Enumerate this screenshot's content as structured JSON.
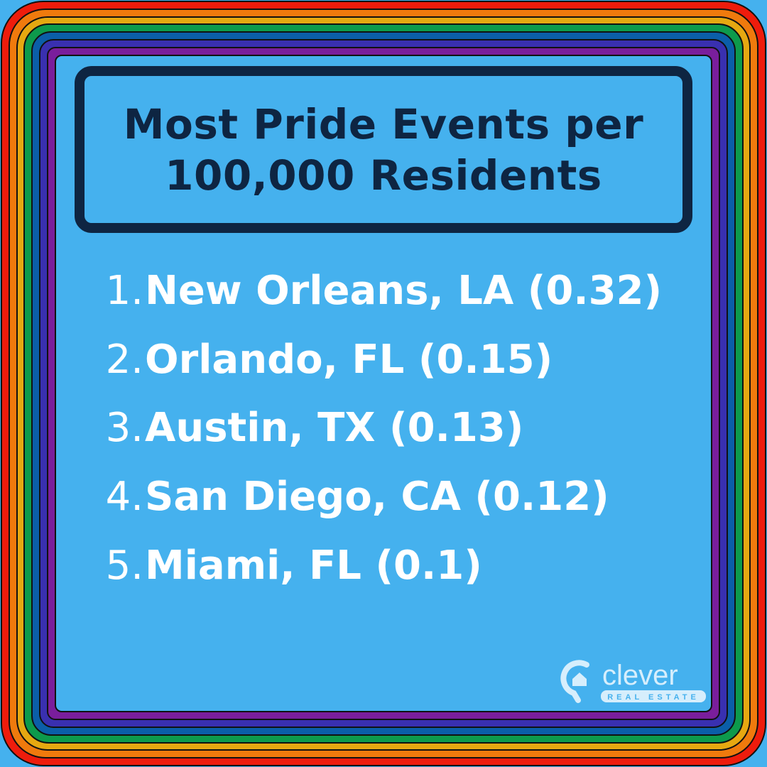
{
  "colors": {
    "bands": [
      "#ee1c0c",
      "#ef7a0d",
      "#e6a811",
      "#0d9a4c",
      "#0b5ea8",
      "#3930b0",
      "#7a1e9c"
    ],
    "background": "#45b1ee",
    "title": "#0e2542",
    "text": "#ffffff"
  },
  "title": {
    "line1": "Most Pride Events per",
    "line2": "100,000 Residents"
  },
  "list": [
    {
      "num": "1.",
      "text": "New Orleans, LA (0.32)"
    },
    {
      "num": "2.",
      "text": "Orlando, FL (0.15)"
    },
    {
      "num": "3.",
      "text": "Austin, TX (0.13)"
    },
    {
      "num": "4.",
      "text": "San Diego, CA (0.12)"
    },
    {
      "num": "5.",
      "text": "Miami, FL (0.1)"
    }
  ],
  "logo": {
    "name": "clever",
    "sub": "REAL ESTATE"
  }
}
